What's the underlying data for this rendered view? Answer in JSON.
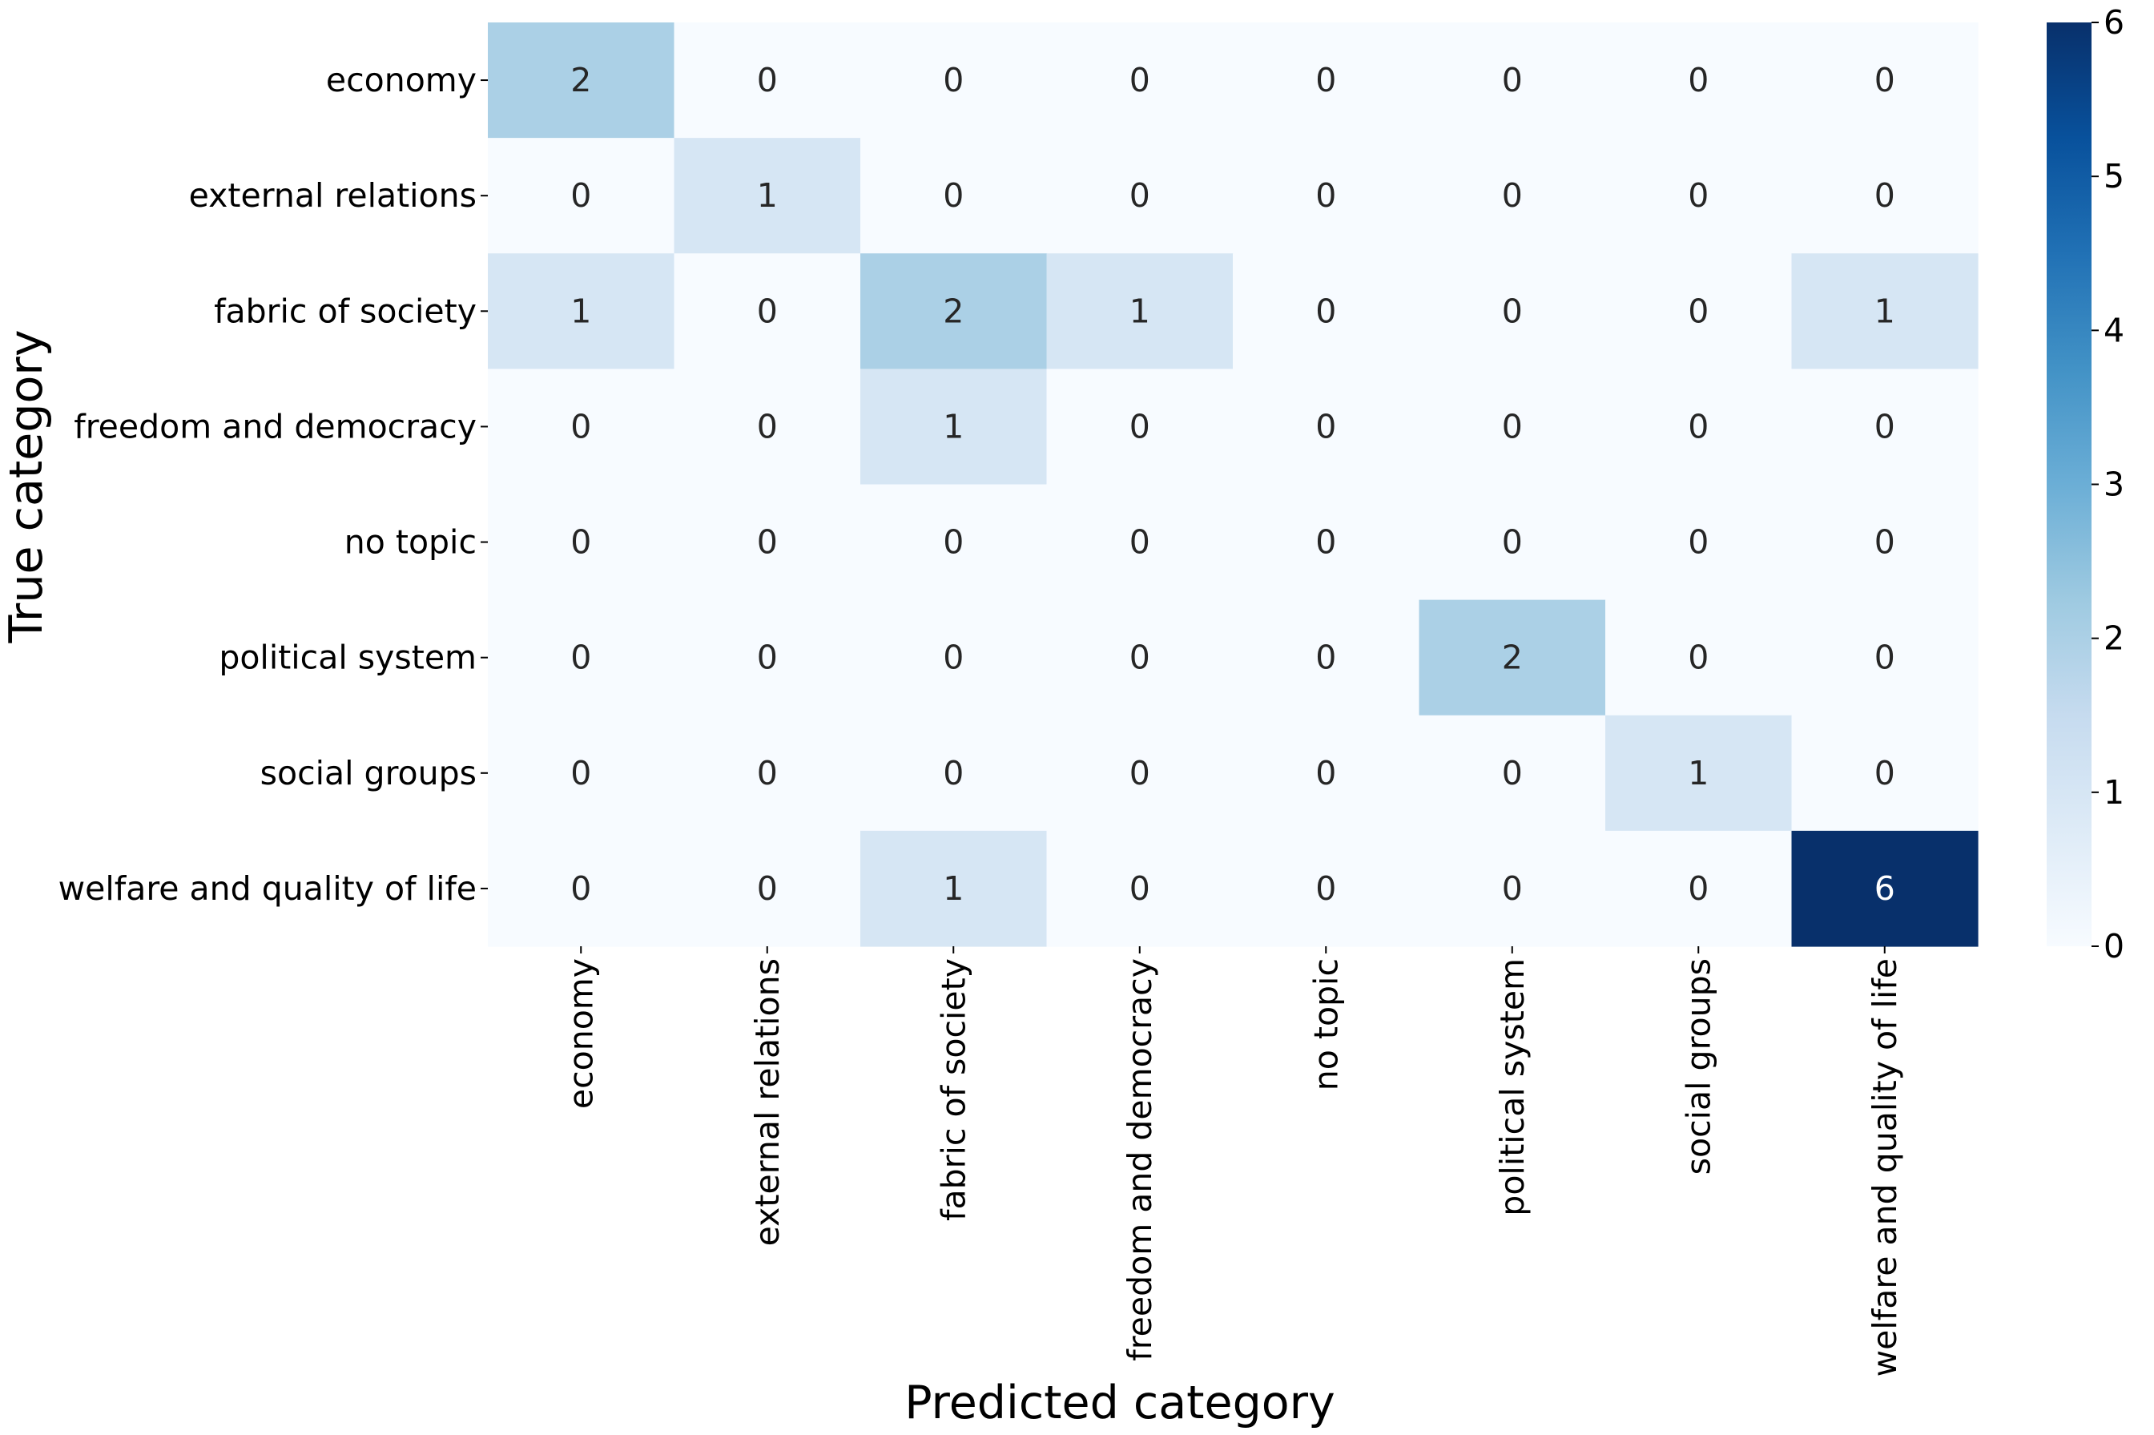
{
  "chart_data": {
    "type": "heatmap",
    "title": "",
    "xlabel": "Predicted category",
    "ylabel": "True category",
    "x_categories": [
      "economy",
      "external relations",
      "fabric of society",
      "freedom and democracy",
      "no topic",
      "political system",
      "social groups",
      "welfare and quality of life"
    ],
    "y_categories": [
      "economy",
      "external relations",
      "fabric of society",
      "freedom and democracy",
      "no topic",
      "political system",
      "social groups",
      "welfare and quality of life"
    ],
    "values": [
      [
        2,
        0,
        0,
        0,
        0,
        0,
        0,
        0
      ],
      [
        0,
        1,
        0,
        0,
        0,
        0,
        0,
        0
      ],
      [
        1,
        0,
        2,
        1,
        0,
        0,
        0,
        1
      ],
      [
        0,
        0,
        1,
        0,
        0,
        0,
        0,
        0
      ],
      [
        0,
        0,
        0,
        0,
        0,
        0,
        0,
        0
      ],
      [
        0,
        0,
        0,
        0,
        0,
        2,
        0,
        0
      ],
      [
        0,
        0,
        0,
        0,
        0,
        0,
        1,
        0
      ],
      [
        0,
        0,
        1,
        0,
        0,
        0,
        0,
        6
      ]
    ],
    "colorbar": {
      "colormap": "Blues",
      "range": [
        0,
        6
      ],
      "ticks": [
        "0",
        "1",
        "2",
        "3",
        "4",
        "5",
        "6"
      ]
    },
    "grid": false,
    "legend": "colorbar-right"
  }
}
